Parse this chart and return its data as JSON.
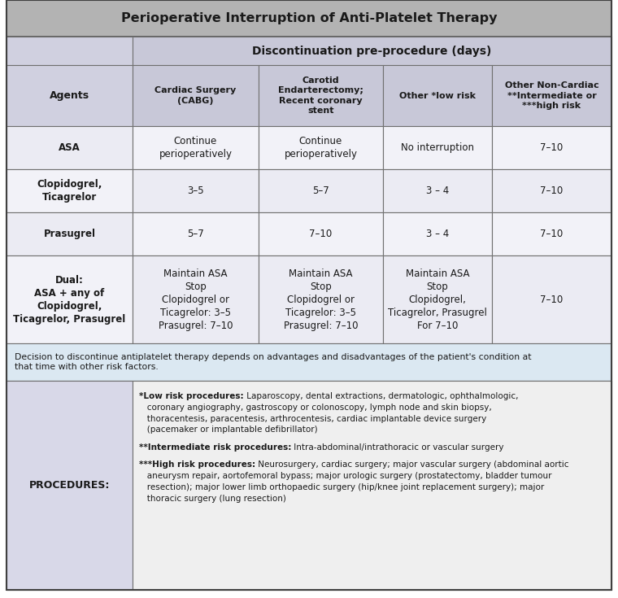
{
  "title": "Perioperative Interruption of Anti-Platelet Therapy",
  "title_bg": "#b3b3b3",
  "header_span_bg": "#c8c8d8",
  "col_header_bg": "#c8c8d8",
  "agent_col_bg": "#d0d0e0",
  "row_even_bg": "#ebebf3",
  "row_odd_bg": "#f2f2f8",
  "note_bg": "#dbe8f2",
  "proc_left_bg": "#d8d8e8",
  "proc_right_bg": "#eeeeee",
  "border_color": "#707070",
  "col_header_text": "Discontinuation pre-procedure (days)",
  "agents_label": "Agents",
  "columns": [
    "Cardiac Surgery\n(CABG)",
    "Carotid\nEndarterectomy;\nRecent coronary\nstent",
    "Other *low risk",
    "Other Non-Cardiac\n**Intermediate or\n***high risk"
  ],
  "rows": [
    {
      "agent": "ASA",
      "values": [
        "Continue\nperioperatively",
        "Continue\nperioperatively",
        "No interruption",
        "7–10"
      ]
    },
    {
      "agent": "Clopidogrel,\nTicagrelor",
      "values": [
        "3–5",
        "5–7",
        "3 – 4",
        "7–10"
      ]
    },
    {
      "agent": "Prasugrel",
      "values": [
        "5–7",
        "7–10",
        "3 – 4",
        "7–10"
      ]
    },
    {
      "agent": "Dual:\nASA + any of\nClopidogrel,\nTicagrelor, Prasugrel",
      "values": [
        "Maintain ASA\nStop\nClopidogrel or\nTicagrelor: 3–5\nPrasugrel: 7–10",
        "Maintain ASA\nStop\nClopidogrel or\nTicagrelor: 3–5\nPrasugrel: 7–10",
        "Maintain ASA\nStop\nClopidogrel,\nTicagrelor, Prasugrel\nFor 7–10",
        "7–10"
      ]
    }
  ],
  "note_text": "Decision to discontinue antiplatelet therapy depends on advantages and disadvantages of the patient's condition at\nthat time with other risk factors.",
  "procedures_label": "PROCEDURES:",
  "proc_lines": [
    {
      "bold": "*Low risk procedures:",
      "normal": " Laparoscopy, dental extractions, dermatologic, ophthalmologic,"
    },
    {
      "bold": "",
      "normal": "   coronary angiography, gastroscopy or colonoscopy, lymph node and skin biopsy,"
    },
    {
      "bold": "",
      "normal": "   thoracentesis, paracentesis, arthrocentesis, cardiac implantable device surgery"
    },
    {
      "bold": "",
      "normal": "   (pacemaker or implantable defibrillator)"
    },
    {
      "bold": "",
      "normal": ""
    },
    {
      "bold": "**Intermediate risk procedures:",
      "normal": " Intra-abdominal/intrathoracic or vascular surgery"
    },
    {
      "bold": "",
      "normal": ""
    },
    {
      "bold": "***High risk procedures:",
      "normal": " Neurosurgery, cardiac surgery; major vascular surgery (abdominal aortic"
    },
    {
      "bold": "",
      "normal": "   aneurysm repair, aortofemoral bypass; major urologic surgery (prostatectomy, bladder tumour"
    },
    {
      "bold": "",
      "normal": "   resection); major lower limb orthopaedic surgery (hip/knee joint replacement surgery); major"
    },
    {
      "bold": "",
      "normal": "   thoracic surgery (lung resection)"
    }
  ]
}
